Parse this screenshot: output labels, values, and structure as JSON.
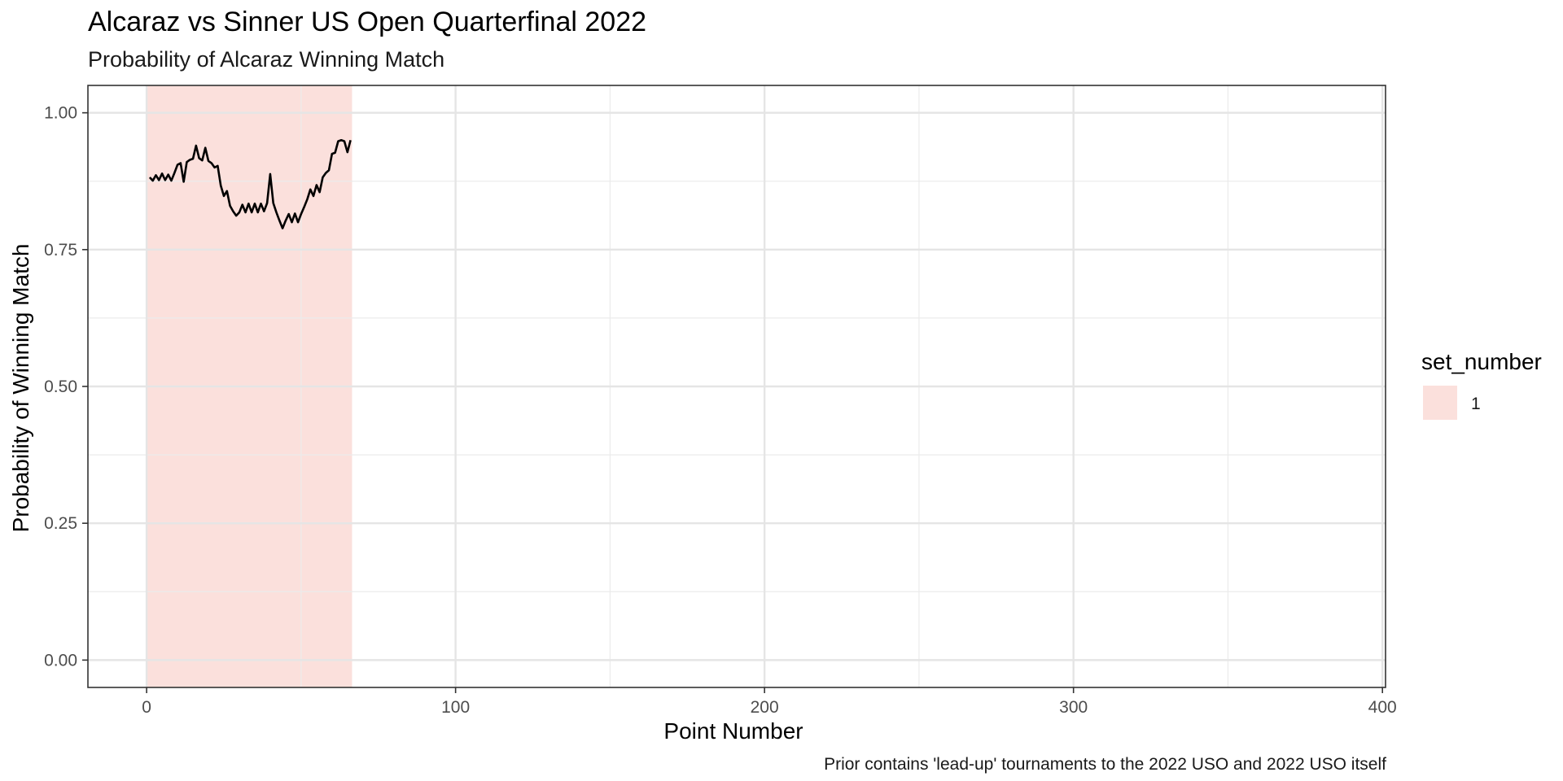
{
  "chart_data": {
    "type": "line",
    "title": "Alcaraz vs Sinner US Open Quarterfinal 2022",
    "subtitle": "Probability of Alcaraz Winning Match",
    "xlabel": "Point Number",
    "ylabel": "Probability of Winning Match",
    "caption": "Prior contains 'lead-up' tournaments to the 2022 USO and 2022 USO itself",
    "xlim": [
      -19,
      401
    ],
    "ylim": [
      -0.05,
      1.05
    ],
    "x_ticks": [
      0,
      100,
      200,
      300,
      400
    ],
    "x_tick_labels": [
      "0",
      "100",
      "200",
      "300",
      "400"
    ],
    "y_ticks": [
      0,
      0.25,
      0.5,
      0.75,
      1
    ],
    "y_tick_labels": [
      "0.00",
      "0.25",
      "0.50",
      "0.75",
      "1.00"
    ],
    "grid": true,
    "legend": {
      "title": "set_number",
      "position": "right",
      "entries": [
        {
          "label": "1",
          "color": "#FBE0DC"
        }
      ]
    },
    "set_regions": [
      {
        "set": "1",
        "x_start": 0,
        "x_end": 66.5,
        "color": "#FBE0DC"
      }
    ],
    "line_color": "#000000",
    "series": [
      {
        "x": [
          1,
          2,
          3,
          4,
          5,
          6,
          7,
          8,
          9,
          10,
          11,
          12,
          13,
          14,
          15,
          16,
          17,
          18,
          19,
          20,
          21,
          22,
          23,
          24,
          25,
          26,
          27,
          28,
          29,
          30,
          31,
          32,
          33,
          34,
          35,
          36,
          37,
          38,
          39,
          40,
          41,
          42,
          43,
          44,
          45,
          46,
          47,
          48,
          49,
          50,
          51,
          52,
          53,
          54,
          55,
          56,
          57,
          58,
          59,
          60,
          61,
          62,
          63,
          64,
          65,
          66
        ],
        "y": [
          0.882,
          0.876,
          0.886,
          0.877,
          0.889,
          0.877,
          0.887,
          0.876,
          0.89,
          0.905,
          0.908,
          0.874,
          0.91,
          0.914,
          0.916,
          0.94,
          0.917,
          0.913,
          0.936,
          0.912,
          0.908,
          0.9,
          0.903,
          0.867,
          0.848,
          0.857,
          0.83,
          0.82,
          0.812,
          0.818,
          0.832,
          0.818,
          0.834,
          0.818,
          0.834,
          0.818,
          0.834,
          0.82,
          0.835,
          0.888,
          0.835,
          0.818,
          0.803,
          0.789,
          0.803,
          0.815,
          0.8,
          0.816,
          0.8,
          0.815,
          0.828,
          0.842,
          0.86,
          0.848,
          0.868,
          0.855,
          0.882,
          0.89,
          0.895,
          0.925,
          0.927,
          0.948,
          0.95,
          0.948,
          0.928,
          0.95
        ]
      }
    ]
  }
}
